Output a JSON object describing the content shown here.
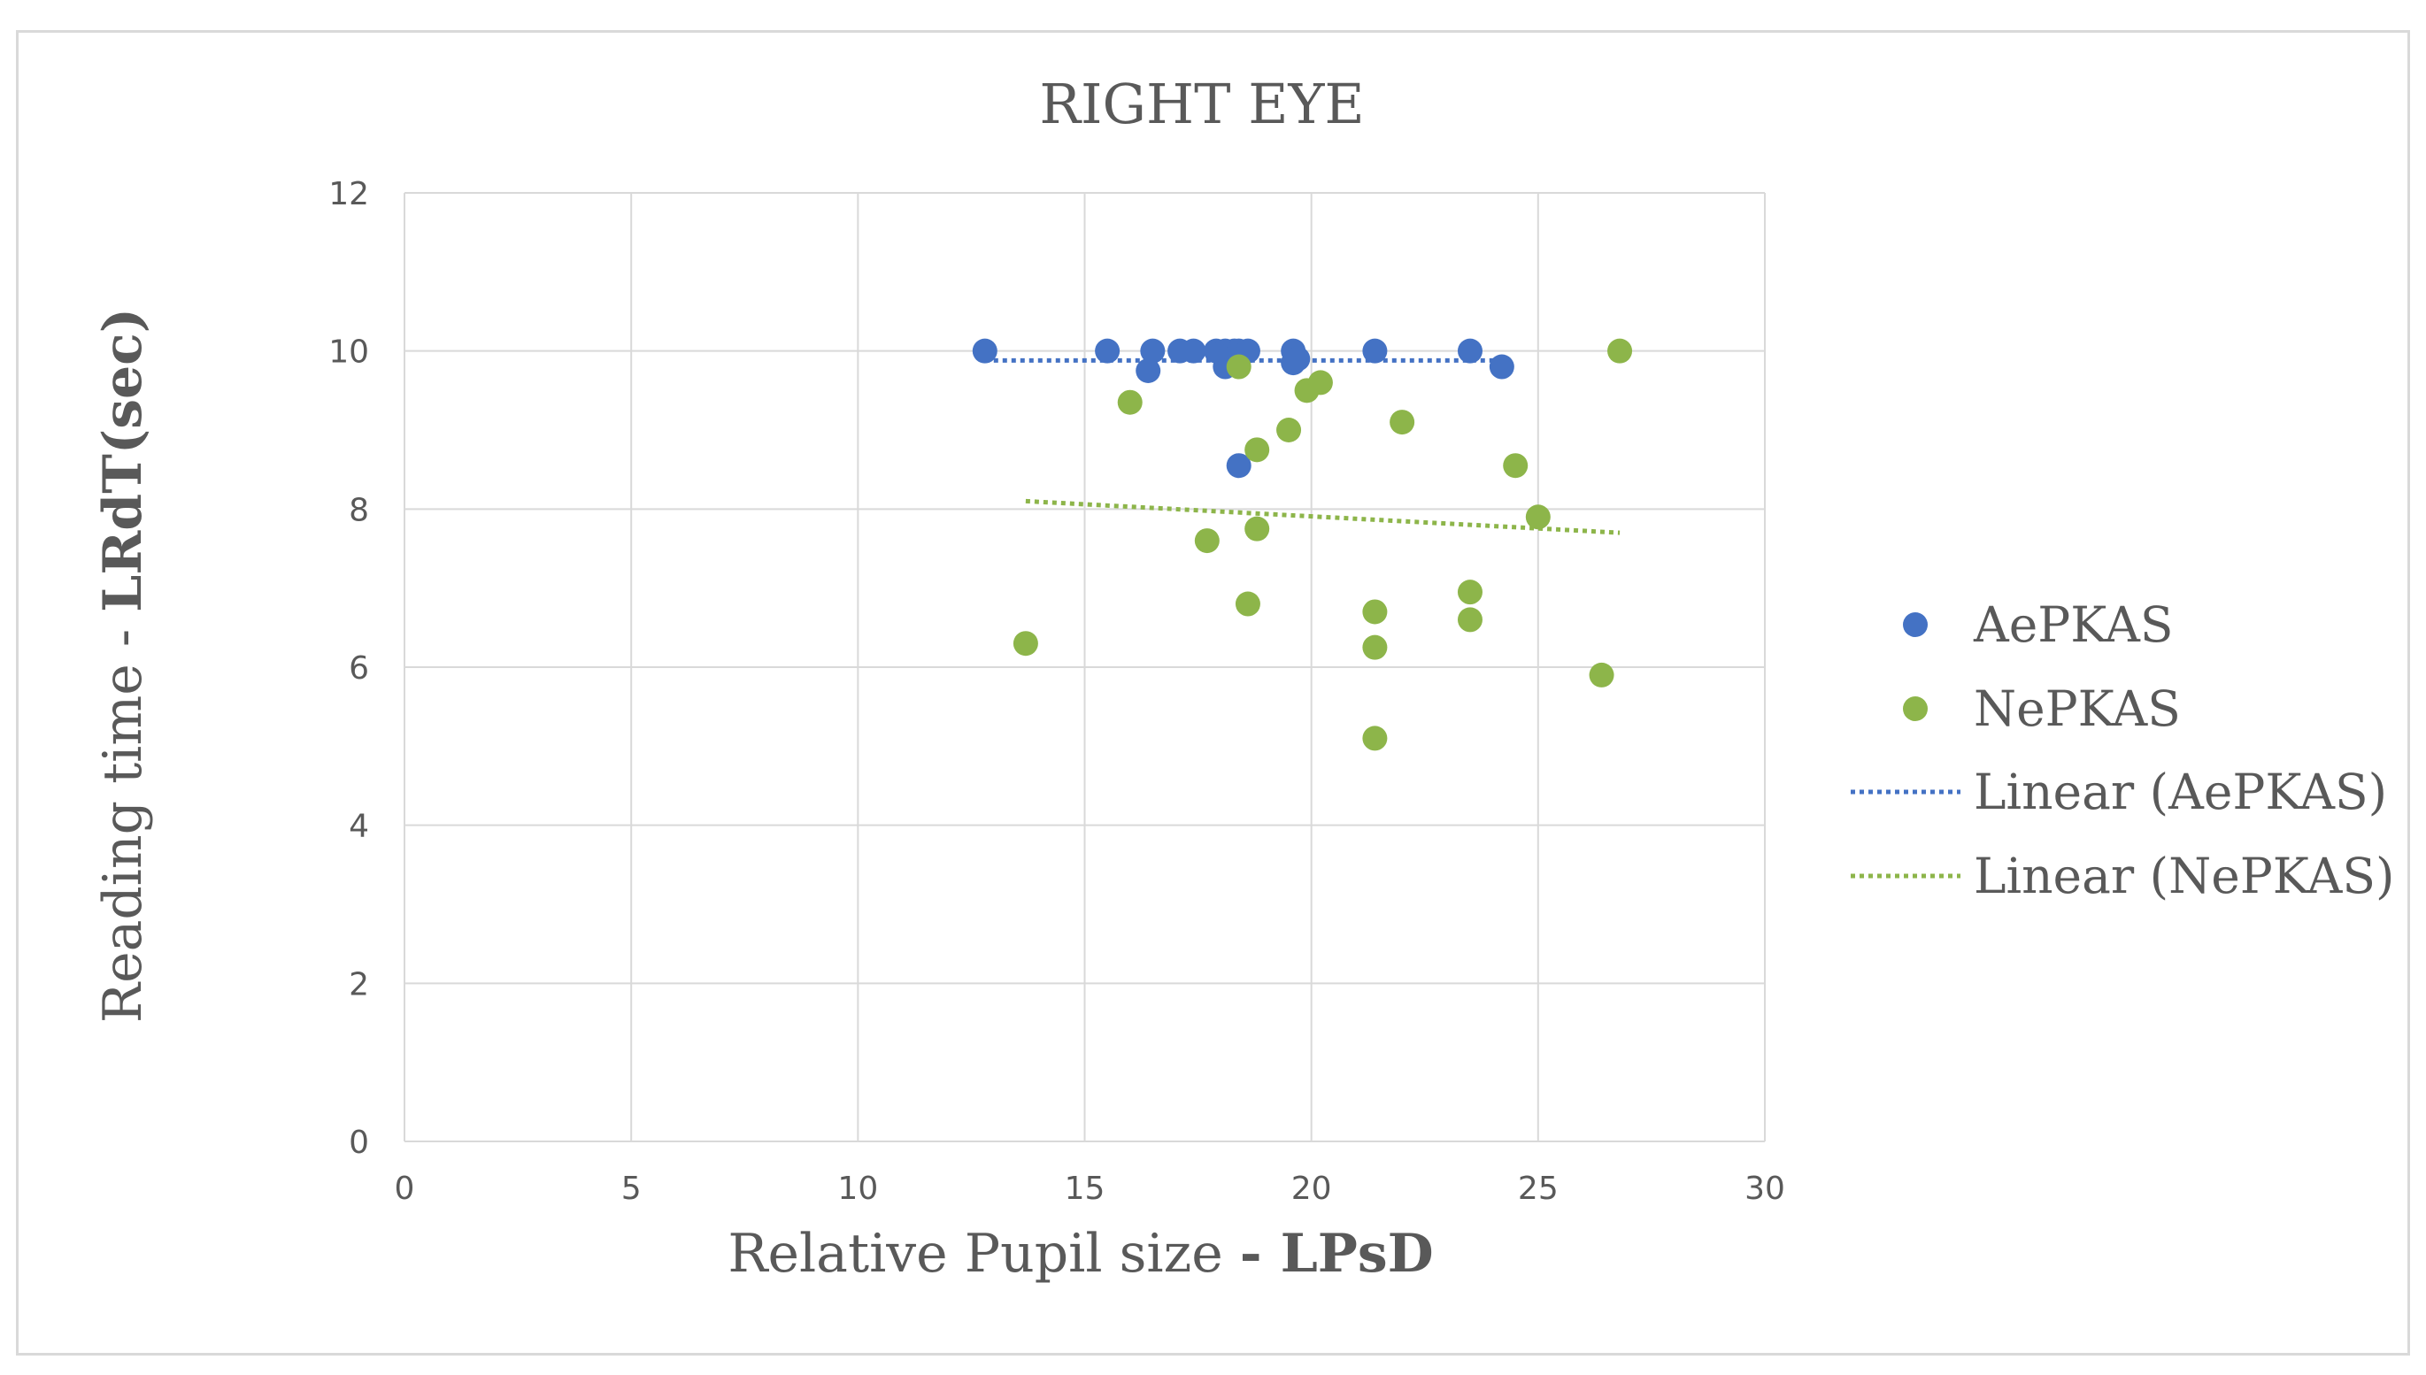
{
  "chart_data": {
    "type": "scatter",
    "title": "RIGHT EYE",
    "xlabel": "Relative Pupil size ",
    "xlabel_bold": "- LPsD",
    "ylabel": "Reading time - ",
    "ylabel_bold": "LRdT(sec)",
    "xlim": [
      0,
      30
    ],
    "ylim": [
      0,
      12
    ],
    "xticks": [
      0,
      5,
      10,
      15,
      20,
      25,
      30
    ],
    "yticks": [
      0,
      2,
      4,
      6,
      8,
      10,
      12
    ],
    "grid": true,
    "legend_position": "right",
    "series": [
      {
        "name": "AePKAS",
        "color": "#4472c4",
        "points": [
          [
            12.8,
            10
          ],
          [
            15.5,
            10
          ],
          [
            16.4,
            9.75
          ],
          [
            16.5,
            10
          ],
          [
            17.1,
            10
          ],
          [
            17.4,
            10
          ],
          [
            17.9,
            10
          ],
          [
            18.1,
            9.8
          ],
          [
            18.1,
            10
          ],
          [
            18.3,
            10
          ],
          [
            18.4,
            10
          ],
          [
            18.6,
            10
          ],
          [
            18.4,
            8.55
          ],
          [
            19.6,
            10
          ],
          [
            19.6,
            9.85
          ],
          [
            19.7,
            9.9
          ],
          [
            21.4,
            10
          ],
          [
            23.5,
            10
          ],
          [
            24.2,
            9.8
          ]
        ],
        "trend": {
          "name": "Linear (AePKAS)",
          "x": [
            12.8,
            24.2
          ],
          "y": [
            9.88,
            9.88
          ]
        }
      },
      {
        "name": "NePKAS",
        "color": "#8db54a",
        "points": [
          [
            13.7,
            6.3
          ],
          [
            16.0,
            9.35
          ],
          [
            17.7,
            7.6
          ],
          [
            18.4,
            9.8
          ],
          [
            18.6,
            6.8
          ],
          [
            18.8,
            7.75
          ],
          [
            18.8,
            8.75
          ],
          [
            19.5,
            9.0
          ],
          [
            19.9,
            9.5
          ],
          [
            20.2,
            9.6
          ],
          [
            21.4,
            6.7
          ],
          [
            21.4,
            6.25
          ],
          [
            21.4,
            5.1
          ],
          [
            22.0,
            9.1
          ],
          [
            23.5,
            6.95
          ],
          [
            23.5,
            6.6
          ],
          [
            24.5,
            8.55
          ],
          [
            25.0,
            7.9
          ],
          [
            26.4,
            5.9
          ],
          [
            26.8,
            10
          ]
        ],
        "trend": {
          "name": "Linear (NePKAS)",
          "x": [
            13.7,
            26.8
          ],
          "y": [
            8.1,
            7.7
          ]
        }
      }
    ]
  }
}
